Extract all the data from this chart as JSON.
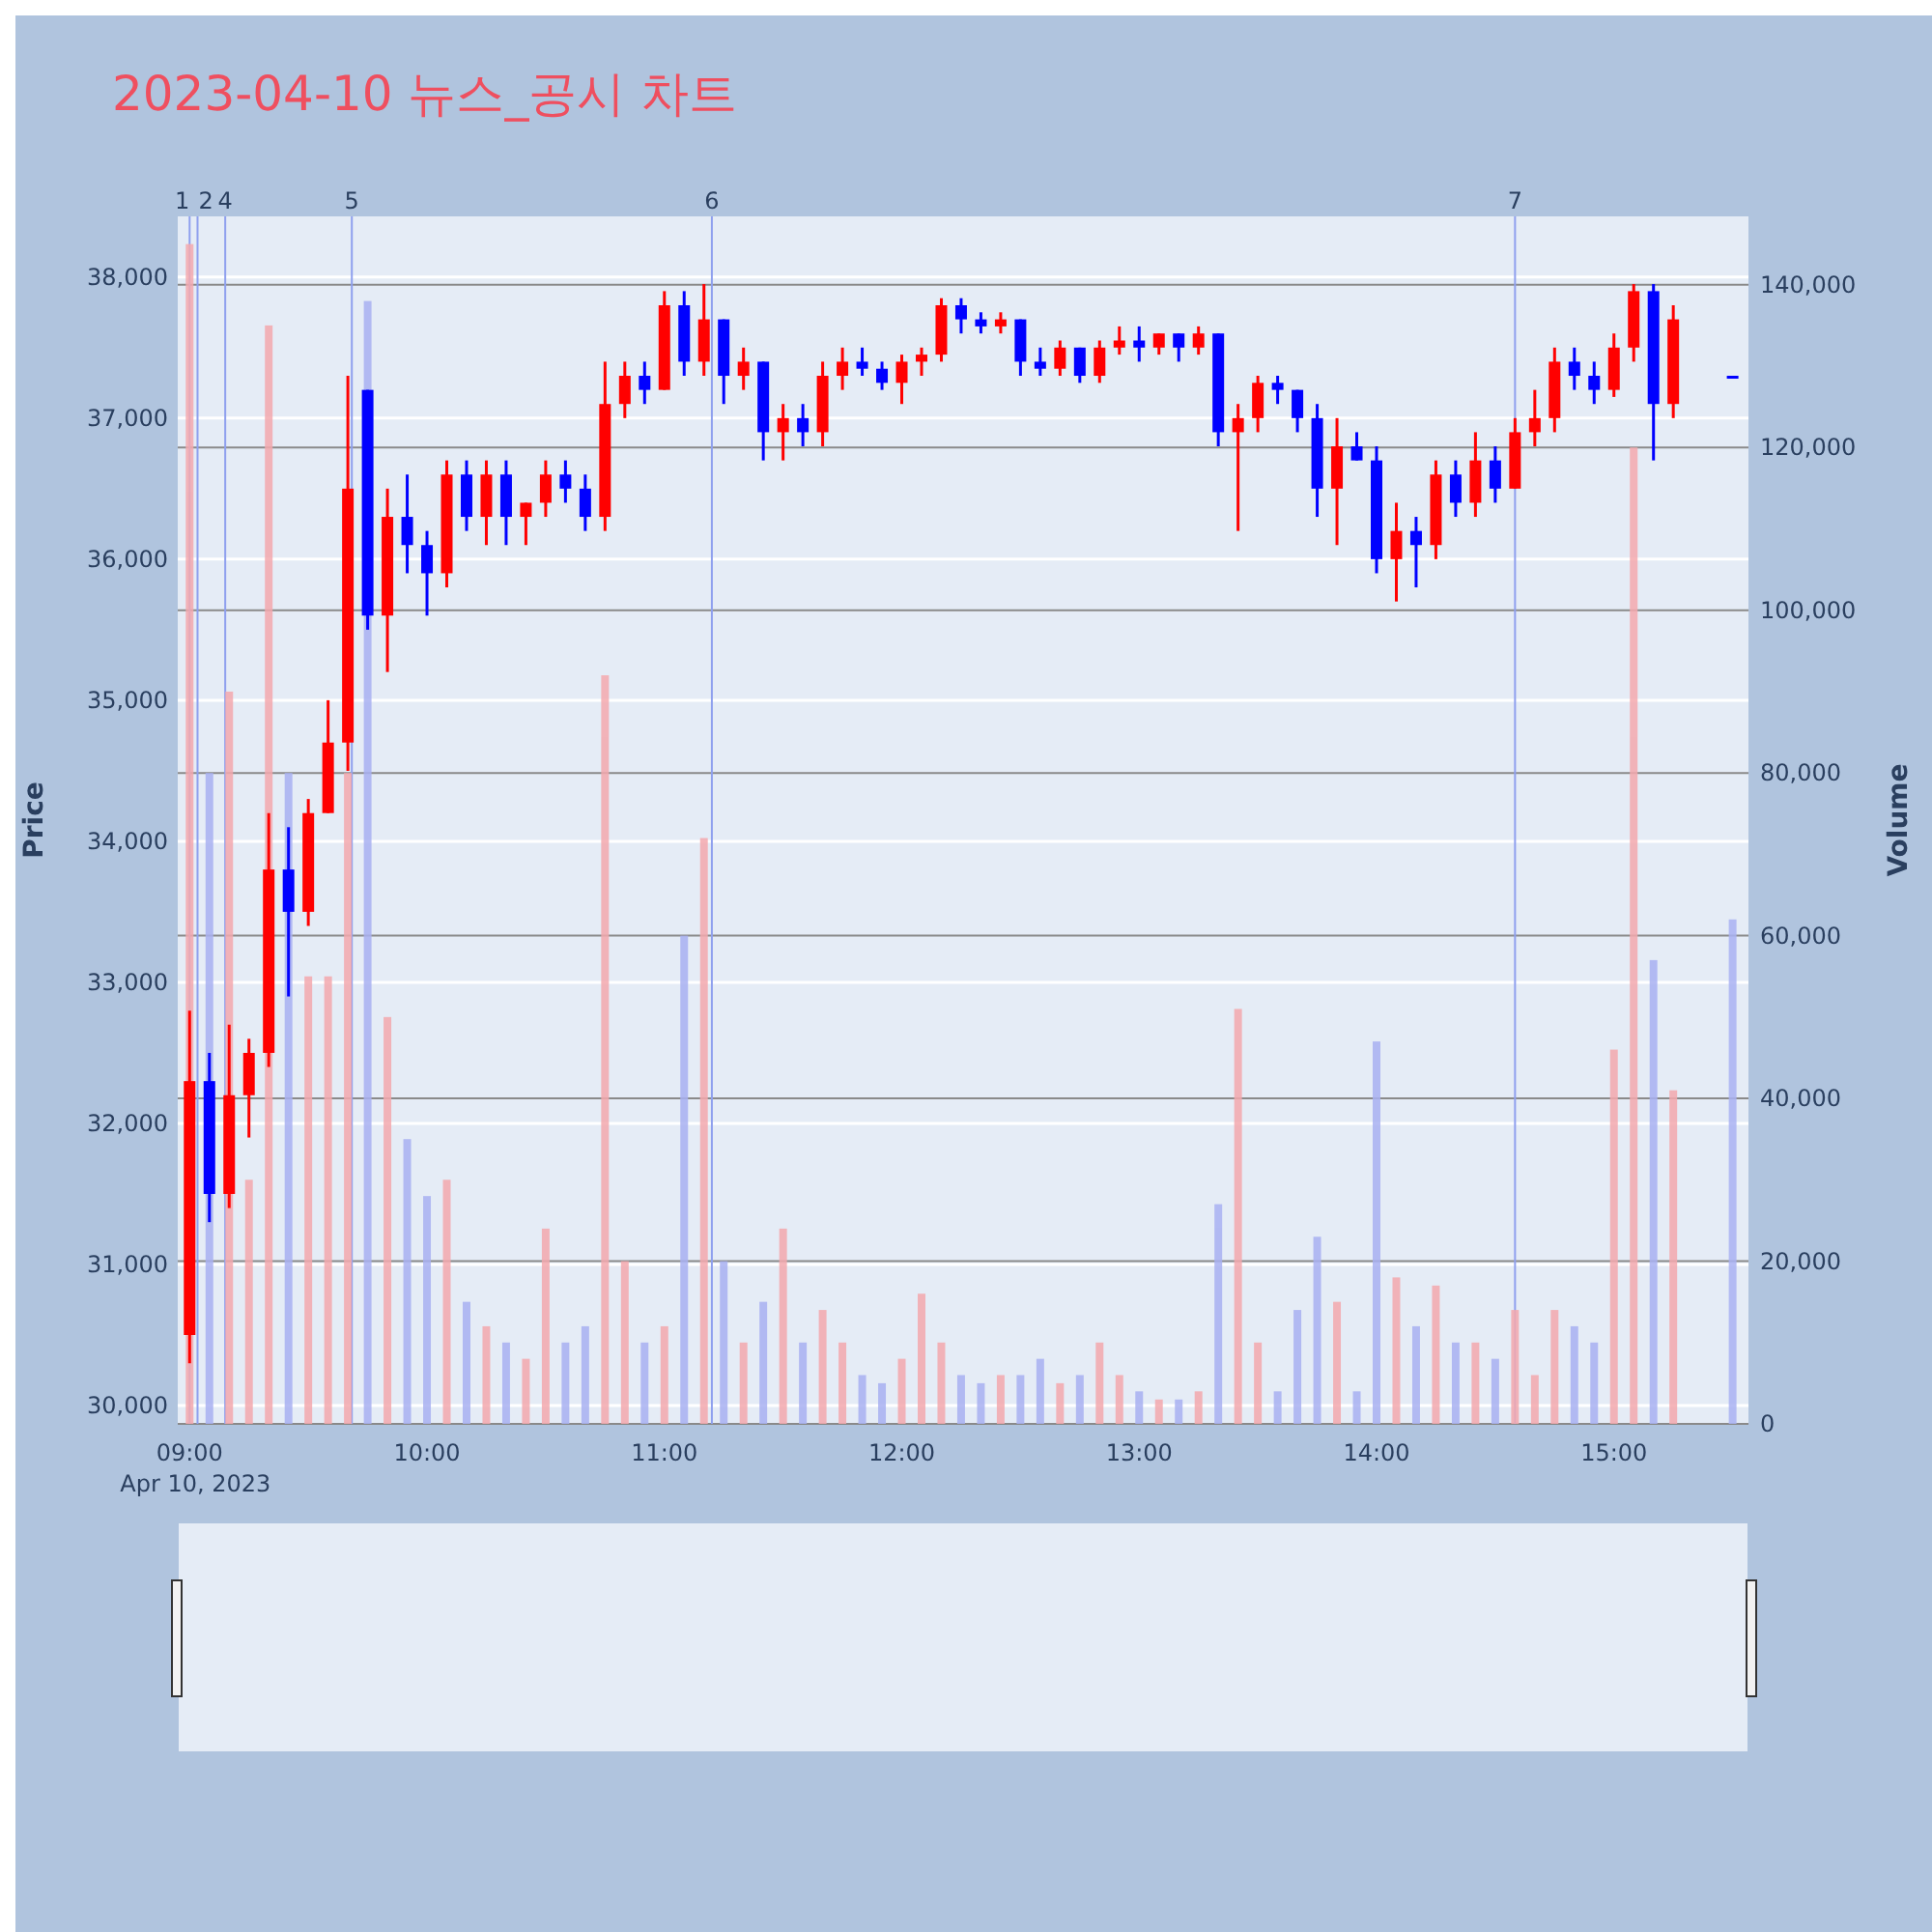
{
  "chart_data": {
    "type": "candlestick",
    "title": "2023-04-10 뉴스_공시 차트",
    "ylabel": "Price",
    "y2label": "Volume",
    "x": [
      "2023-04-10T09:00",
      "2023-04-10T09:05",
      "2023-04-10T09:10",
      "2023-04-10T09:15",
      "2023-04-10T09:20",
      "2023-04-10T09:25",
      "2023-04-10T09:30",
      "2023-04-10T09:35",
      "2023-04-10T09:40",
      "2023-04-10T09:45",
      "2023-04-10T09:50",
      "2023-04-10T09:55",
      "2023-04-10T10:00",
      "2023-04-10T10:05",
      "2023-04-10T10:10",
      "2023-04-10T10:15",
      "2023-04-10T10:20",
      "2023-04-10T10:25",
      "2023-04-10T10:30",
      "2023-04-10T10:35",
      "2023-04-10T10:40",
      "2023-04-10T10:45",
      "2023-04-10T10:50",
      "2023-04-10T10:55",
      "2023-04-10T11:00",
      "2023-04-10T11:05",
      "2023-04-10T11:10",
      "2023-04-10T11:15",
      "2023-04-10T11:20",
      "2023-04-10T11:25",
      "2023-04-10T11:30",
      "2023-04-10T11:35",
      "2023-04-10T11:40",
      "2023-04-10T11:45",
      "2023-04-10T11:50",
      "2023-04-10T11:55",
      "2023-04-10T12:00",
      "2023-04-10T12:05",
      "2023-04-10T12:10",
      "2023-04-10T12:15",
      "2023-04-10T12:20",
      "2023-04-10T12:25",
      "2023-04-10T12:30",
      "2023-04-10T12:35",
      "2023-04-10T12:40",
      "2023-04-10T12:45",
      "2023-04-10T12:50",
      "2023-04-10T12:55",
      "2023-04-10T13:00",
      "2023-04-10T13:05",
      "2023-04-10T13:10",
      "2023-04-10T13:15",
      "2023-04-10T13:20",
      "2023-04-10T13:25",
      "2023-04-10T13:30",
      "2023-04-10T13:35",
      "2023-04-10T13:40",
      "2023-04-10T13:45",
      "2023-04-10T13:50",
      "2023-04-10T13:55",
      "2023-04-10T14:00",
      "2023-04-10T14:05",
      "2023-04-10T14:10",
      "2023-04-10T14:15",
      "2023-04-10T14:20",
      "2023-04-10T14:25",
      "2023-04-10T14:30",
      "2023-04-10T14:35",
      "2023-04-10T14:40",
      "2023-04-10T14:45",
      "2023-04-10T14:50",
      "2023-04-10T14:55",
      "2023-04-10T15:00",
      "2023-04-10T15:05",
      "2023-04-10T15:10",
      "2023-04-10T15:15",
      "2023-04-10T15:30"
    ],
    "series": [
      {
        "ohlc": [
          [
            30500,
            32800,
            30300,
            32300
          ],
          [
            32300,
            32500,
            31300,
            31500
          ],
          [
            31500,
            32700,
            31400,
            32200
          ],
          [
            32200,
            32600,
            31900,
            32500
          ],
          [
            32500,
            34200,
            32400,
            33800
          ],
          [
            33800,
            34100,
            32900,
            33500
          ],
          [
            33500,
            34300,
            33400,
            34200
          ],
          [
            34200,
            35000,
            34200,
            34700
          ],
          [
            34700,
            37300,
            34500,
            36500
          ],
          [
            37200,
            37200,
            35500,
            35600
          ],
          [
            35600,
            36500,
            35200,
            36300
          ],
          [
            36300,
            36600,
            35900,
            36100
          ],
          [
            36100,
            36200,
            35600,
            35900
          ],
          [
            35900,
            36700,
            35800,
            36600
          ],
          [
            36600,
            36700,
            36200,
            36300
          ],
          [
            36300,
            36700,
            36100,
            36600
          ],
          [
            36600,
            36700,
            36100,
            36300
          ],
          [
            36300,
            36400,
            36100,
            36400
          ],
          [
            36400,
            36700,
            36300,
            36600
          ],
          [
            36600,
            36700,
            36400,
            36500
          ],
          [
            36500,
            36600,
            36200,
            36300
          ],
          [
            36300,
            37400,
            36200,
            37100
          ],
          [
            37100,
            37400,
            37000,
            37300
          ],
          [
            37300,
            37400,
            37100,
            37200
          ],
          [
            37200,
            37900,
            37200,
            37800
          ],
          [
            37800,
            37900,
            37300,
            37400
          ],
          [
            37400,
            37950,
            37300,
            37700
          ],
          [
            37700,
            37700,
            37100,
            37300
          ],
          [
            37300,
            37500,
            37200,
            37400
          ],
          [
            37400,
            37400,
            36700,
            36900
          ],
          [
            36900,
            37100,
            36700,
            37000
          ],
          [
            37000,
            37100,
            36800,
            36900
          ],
          [
            36900,
            37400,
            36800,
            37300
          ],
          [
            37300,
            37500,
            37200,
            37400
          ],
          [
            37400,
            37500,
            37300,
            37350
          ],
          [
            37350,
            37400,
            37200,
            37250
          ],
          [
            37250,
            37450,
            37100,
            37400
          ],
          [
            37400,
            37500,
            37300,
            37450
          ],
          [
            37450,
            37850,
            37400,
            37800
          ],
          [
            37800,
            37850,
            37600,
            37700
          ],
          [
            37700,
            37750,
            37600,
            37650
          ],
          [
            37650,
            37750,
            37600,
            37700
          ],
          [
            37700,
            37700,
            37300,
            37400
          ],
          [
            37400,
            37500,
            37300,
            37350
          ],
          [
            37350,
            37550,
            37300,
            37500
          ],
          [
            37500,
            37500,
            37250,
            37300
          ],
          [
            37300,
            37550,
            37250,
            37500
          ],
          [
            37500,
            37650,
            37450,
            37550
          ],
          [
            37550,
            37650,
            37400,
            37500
          ],
          [
            37500,
            37600,
            37450,
            37600
          ],
          [
            37600,
            37600,
            37400,
            37500
          ],
          [
            37500,
            37650,
            37450,
            37600
          ],
          [
            37600,
            37600,
            36800,
            36900
          ],
          [
            36900,
            37100,
            36200,
            37000
          ],
          [
            37000,
            37300,
            36900,
            37250
          ],
          [
            37250,
            37300,
            37100,
            37200
          ],
          [
            37200,
            37200,
            36900,
            37000
          ],
          [
            37000,
            37100,
            36300,
            36500
          ],
          [
            36500,
            37000,
            36100,
            36800
          ],
          [
            36800,
            36900,
            36700,
            36700
          ],
          [
            36700,
            36800,
            35900,
            36000
          ],
          [
            36000,
            36400,
            35700,
            36200
          ],
          [
            36200,
            36300,
            35800,
            36100
          ],
          [
            36100,
            36700,
            36000,
            36600
          ],
          [
            36600,
            36700,
            36300,
            36400
          ],
          [
            36400,
            36900,
            36300,
            36700
          ],
          [
            36700,
            36800,
            36400,
            36500
          ],
          [
            36500,
            37000,
            36500,
            36900
          ],
          [
            36900,
            37200,
            36800,
            37000
          ],
          [
            37000,
            37500,
            36900,
            37400
          ],
          [
            37400,
            37500,
            37200,
            37300
          ],
          [
            37300,
            37400,
            37100,
            37200
          ],
          [
            37200,
            37600,
            37150,
            37500
          ],
          [
            37500,
            37950,
            37400,
            37900
          ],
          [
            37900,
            37950,
            36700,
            37100
          ],
          [
            37100,
            37800,
            37000,
            37700
          ],
          [
            37300,
            37300,
            37300,
            37300
          ]
        ],
        "colors": [
          "#ff0000",
          "#0000ff",
          "#ff0000",
          "#ff0000",
          "#ff0000",
          "#0000ff",
          "#ff0000",
          "#ff0000",
          "#ff0000",
          "#0000ff",
          "#ff0000",
          "#0000ff",
          "#0000ff",
          "#ff0000",
          "#0000ff",
          "#ff0000",
          "#0000ff",
          "#ff0000",
          "#ff0000",
          "#0000ff",
          "#0000ff",
          "#ff0000",
          "#ff0000",
          "#0000ff",
          "#ff0000",
          "#0000ff",
          "#ff0000",
          "#0000ff",
          "#ff0000",
          "#0000ff",
          "#ff0000",
          "#0000ff",
          "#ff0000",
          "#ff0000",
          "#0000ff",
          "#0000ff",
          "#ff0000",
          "#ff0000",
          "#ff0000",
          "#0000ff",
          "#0000ff",
          "#ff0000",
          "#0000ff",
          "#0000ff",
          "#ff0000",
          "#0000ff",
          "#ff0000",
          "#ff0000",
          "#0000ff",
          "#ff0000",
          "#0000ff",
          "#ff0000",
          "#0000ff",
          "#ff0000",
          "#ff0000",
          "#0000ff",
          "#0000ff",
          "#0000ff",
          "#ff0000",
          "#0000ff",
          "#0000ff",
          "#ff0000",
          "#0000ff",
          "#ff0000",
          "#0000ff",
          "#ff0000",
          "#0000ff",
          "#ff0000",
          "#ff0000",
          "#ff0000",
          "#0000ff",
          "#0000ff",
          "#ff0000",
          "#ff0000",
          "#0000ff",
          "#ff0000",
          "#0000ff"
        ]
      },
      {
        "type": "bar",
        "axis": "y2",
        "values": [
          145000,
          80000,
          90000,
          30000,
          135000,
          80000,
          55000,
          55000,
          80000,
          138000,
          50000,
          35000,
          28000,
          30000,
          15000,
          12000,
          10000,
          8000,
          24000,
          10000,
          12000,
          92000,
          20000,
          10000,
          12000,
          60000,
          72000,
          20000,
          10000,
          15000,
          24000,
          10000,
          14000,
          10000,
          6000,
          5000,
          8000,
          16000,
          10000,
          6000,
          5000,
          6000,
          6000,
          8000,
          5000,
          6000,
          10000,
          6000,
          4000,
          3000,
          3000,
          4000,
          27000,
          51000,
          10000,
          4000,
          14000,
          23000,
          15000,
          4000,
          47000,
          18000,
          12000,
          17000,
          10000,
          10000,
          8000,
          14000,
          6000,
          14000,
          12000,
          10000,
          46000,
          120000,
          57000,
          41000,
          62000
        ],
        "colors": [
          "#f4a9ae",
          "#a9b1f2",
          "#f4a9ae",
          "#f4a9ae",
          "#f4a9ae",
          "#a9b1f2",
          "#f4a9ae",
          "#f4a9ae",
          "#f4a9ae",
          "#a9b1f2",
          "#f4a9ae",
          "#a9b1f2",
          "#a9b1f2",
          "#f4a9ae",
          "#a9b1f2",
          "#f4a9ae",
          "#a9b1f2",
          "#f4a9ae",
          "#f4a9ae",
          "#a9b1f2",
          "#a9b1f2",
          "#f4a9ae",
          "#f4a9ae",
          "#a9b1f2",
          "#f4a9ae",
          "#a9b1f2",
          "#f4a9ae",
          "#a9b1f2",
          "#f4a9ae",
          "#a9b1f2",
          "#f4a9ae",
          "#a9b1f2",
          "#f4a9ae",
          "#f4a9ae",
          "#a9b1f2",
          "#a9b1f2",
          "#f4a9ae",
          "#f4a9ae",
          "#f4a9ae",
          "#a9b1f2",
          "#a9b1f2",
          "#f4a9ae",
          "#a9b1f2",
          "#a9b1f2",
          "#f4a9ae",
          "#a9b1f2",
          "#f4a9ae",
          "#f4a9ae",
          "#a9b1f2",
          "#f4a9ae",
          "#a9b1f2",
          "#f4a9ae",
          "#a9b1f2",
          "#f4a9ae",
          "#f4a9ae",
          "#a9b1f2",
          "#a9b1f2",
          "#a9b1f2",
          "#f4a9ae",
          "#a9b1f2",
          "#a9b1f2",
          "#f4a9ae",
          "#a9b1f2",
          "#f4a9ae",
          "#a9b1f2",
          "#f4a9ae",
          "#a9b1f2",
          "#f4a9ae",
          "#f4a9ae",
          "#f4a9ae",
          "#a9b1f2",
          "#a9b1f2",
          "#f4a9ae",
          "#f4a9ae",
          "#a9b1f2",
          "#f4a9ae",
          "#a9b1f2"
        ]
      }
    ],
    "xlim": [
      "2023-04-10T08:57",
      "2023-04-10T15:34"
    ],
    "xticks": [
      {
        "value": "2023-04-10T09:00",
        "label": "09:00\nApr 10, 2023"
      },
      {
        "value": "2023-04-10T10:00",
        "label": "10:00"
      },
      {
        "value": "2023-04-10T11:00",
        "label": "11:00"
      },
      {
        "value": "2023-04-10T12:00",
        "label": "12:00"
      },
      {
        "value": "2023-04-10T13:00",
        "label": "13:00"
      },
      {
        "value": "2023-04-10T14:00",
        "label": "14:00"
      },
      {
        "value": "2023-04-10T15:00",
        "label": "15:00"
      }
    ],
    "ylim": [
      29870,
      38430
    ],
    "yticks": [
      {
        "value": 30000,
        "label": "30,000"
      },
      {
        "value": 31000,
        "label": "31,000"
      },
      {
        "value": 32000,
        "label": "32,000"
      },
      {
        "value": 33000,
        "label": "33,000"
      },
      {
        "value": 34000,
        "label": "34,000"
      },
      {
        "value": 35000,
        "label": "35,000"
      },
      {
        "value": 36000,
        "label": "36,000"
      },
      {
        "value": 37000,
        "label": "37,000"
      },
      {
        "value": 38000,
        "label": "38,000"
      }
    ],
    "y2lim": [
      0,
      148400
    ],
    "y2ticks": [
      0,
      {
        "value": 20000,
        "label": "20,000"
      },
      {
        "value": 40000,
        "label": "40,000"
      },
      {
        "value": 60000,
        "label": "60,000"
      },
      {
        "value": 80000,
        "label": "80,000"
      },
      {
        "value": 100000,
        "label": "100,000"
      },
      {
        "value": 120000,
        "label": "120,000"
      },
      {
        "value": 140000,
        "label": "140,000"
      }
    ],
    "ref_lines": [
      {
        "axis": "x",
        "value": "2023-04-10T09:00",
        "label": "1",
        "color": "#8fa0ee"
      },
      {
        "axis": "x",
        "value": "2023-04-10T09:02",
        "label": "2",
        "color": "#8fa0ee"
      },
      {
        "axis": "x",
        "value": "2023-04-10T09:09",
        "label": "4",
        "color": "#8fa0ee"
      },
      {
        "axis": "x",
        "value": "2023-04-10T09:41",
        "label": "5",
        "color": "#8fa0ee"
      },
      {
        "axis": "x",
        "value": "2023-04-10T11:12",
        "label": "6",
        "color": "#8fa0ee"
      },
      {
        "axis": "x",
        "value": "2023-04-10T14:35",
        "label": "7",
        "color": "#8fa0ee"
      }
    ],
    "grid": "y"
  }
}
